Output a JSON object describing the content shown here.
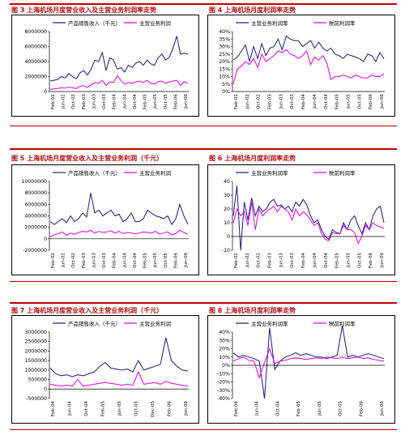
{
  "colors": {
    "primary": "#1a1a6e",
    "secondary": "#e000e0",
    "rule": "#c00000",
    "title": "#b01010"
  },
  "panels": [
    {
      "title": "图 3 上海机场月度营业收入及主营业务利润率走势",
      "legend": [
        "产品销售收入（千元）",
        "主营业务利润"
      ]
    },
    {
      "title": "图 4 上海机场月度利润率走势",
      "legend": [
        "主营业务利润率",
        "税前利润率"
      ]
    },
    {
      "title": "图 5 上海机场月度营业收入及主营业务利润（千元）",
      "legend": [
        "产品销售收入（千元）",
        "主营业务利润"
      ]
    },
    {
      "title": "图 6 上海机场月度利润率走势",
      "legend": [
        "主营业务利润率",
        "税前利润率"
      ]
    },
    {
      "title": "图 7 上海机场月度营业收入及主营业务利润（千元）",
      "legend": [
        "产品销售收入（千元）",
        "主营业务利润"
      ]
    },
    {
      "title": "图 8 上海机场月度利润率走势",
      "legend": [
        "主营业务利润率",
        "税前利润率"
      ]
    }
  ],
  "chart_data": [
    {
      "type": "line",
      "xlabels": [
        "Feb-02",
        "Jun-02",
        "Oct-02",
        "Feb-03",
        "Jun-03",
        "Oct-03",
        "Feb-04",
        "Jun-04",
        "Oct-04",
        "Feb-05",
        "Jun-05",
        "Oct-05",
        "Feb-06",
        "Jun-06"
      ],
      "yticks": [
        "8000000",
        "6000000",
        "4000000",
        "2000000",
        "0"
      ],
      "ylim": [
        0,
        8000000
      ],
      "series": [
        {
          "name": "产品销售收入（千元）",
          "values": [
            1400000,
            1500000,
            1600000,
            2000000,
            1800000,
            2400000,
            2000000,
            1700000,
            2500000,
            2800000,
            2200000,
            3000000,
            4200000,
            4000000,
            5200000,
            2800000,
            4500000,
            4200000,
            3000000,
            3200000,
            2600000,
            3500000,
            3200000,
            3800000,
            4000000,
            3500000,
            4200000,
            3700000,
            3500000,
            4500000,
            5000000,
            4200000,
            4600000,
            5800000,
            7400000,
            5000000,
            5100000,
            5000000
          ]
        },
        {
          "name": "主营业务利润",
          "values": [
            300000,
            350000,
            400000,
            500000,
            450000,
            600000,
            500000,
            400000,
            700000,
            800000,
            550000,
            900000,
            1200000,
            1100000,
            1500000,
            800000,
            1300000,
            1200000,
            2100000,
            1500000,
            1000000,
            1200000,
            1100000,
            1300000,
            1400000,
            1200000,
            1500000,
            1100000,
            1000000,
            1300000,
            1400000,
            1100000,
            1300000,
            1400000,
            1500000,
            800000,
            1300000,
            1100000
          ]
        }
      ]
    },
    {
      "type": "line",
      "xlabels": [
        "Feb-02",
        "Jun-02",
        "Oct-02",
        "Feb-03",
        "Jun-03",
        "Oct-03",
        "Feb-04",
        "Jun-04",
        "Oct-04",
        "Feb-05",
        "Jun-05",
        "Oct-05",
        "Feb-06",
        "Jun-06"
      ],
      "yticks": [
        "40%",
        "35%",
        "30%",
        "25%",
        "20%",
        "15%",
        "10%",
        "5%",
        "0%"
      ],
      "ylim": [
        0,
        40
      ],
      "series": [
        {
          "name": "主营业务利润率",
          "values": [
            21,
            23,
            27,
            31,
            20,
            30,
            22,
            32,
            24,
            29,
            30,
            35,
            28,
            37,
            35,
            34,
            34,
            30,
            32,
            34,
            29,
            33,
            29,
            27,
            29,
            25,
            24,
            22,
            25,
            24,
            23,
            22,
            20,
            25,
            24,
            20,
            26,
            22
          ]
        },
        {
          "name": "税前利润率",
          "values": [
            5,
            15,
            17,
            20,
            18,
            22,
            16,
            25,
            20,
            22,
            24,
            27,
            26,
            28,
            25,
            24,
            22,
            24,
            27,
            18,
            23,
            21,
            24,
            19,
            8,
            10,
            10,
            11,
            10,
            9,
            11,
            10,
            9,
            9,
            11,
            10,
            10,
            12
          ]
        }
      ]
    },
    {
      "type": "line",
      "xlabels": [
        "Feb-02",
        "Jun-02",
        "Oct-02",
        "Feb-03",
        "Jun-03",
        "Oct-03",
        "Feb-04",
        "Jun-04",
        "Oct-04",
        "Feb-05",
        "Jun-05",
        "Oct-05",
        "Feb-06",
        "Jun-06"
      ],
      "yticks": [
        "10000000",
        "8000000",
        "6000000",
        "4000000",
        "2000000",
        "0",
        "-2000000"
      ],
      "ylim": [
        -2000000,
        10000000
      ],
      "series": [
        {
          "name": "产品销售收入（千元）",
          "values": [
            3000000,
            2500000,
            3000000,
            3500000,
            2800000,
            4000000,
            3000000,
            3500000,
            4500000,
            3800000,
            8000000,
            4500000,
            5000000,
            4000000,
            4500000,
            5000000,
            4000000,
            4300000,
            3000000,
            3500000,
            4500000,
            3000000,
            3000000,
            3500000,
            5000000,
            4500000,
            4000000,
            3800000,
            3500000,
            4000000,
            2500000,
            3500000,
            6000000,
            4000000,
            2500000
          ]
        },
        {
          "name": "主营业务利润",
          "values": [
            300000,
            700000,
            900000,
            1200000,
            600000,
            1000000,
            800000,
            1100000,
            1300000,
            1200000,
            1500000,
            1000000,
            1300000,
            1100000,
            1200000,
            1400000,
            1000000,
            1300000,
            900000,
            1100000,
            1000000,
            900000,
            1000000,
            1200000,
            1100000,
            1000000,
            1300000,
            800000,
            1000000,
            1200000,
            700000,
            900000,
            1500000,
            1100000,
            800000
          ]
        }
      ]
    },
    {
      "type": "line",
      "xlabels": [
        "Feb-02",
        "Jun-02",
        "Oct-02",
        "Feb-03",
        "Jun-03",
        "Oct-03",
        "Feb-04",
        "Jun-04",
        "Oct-04",
        "Feb-05",
        "Jun-05",
        "Oct-05",
        "Feb-06",
        "Jun-06"
      ],
      "yticks": [
        "40",
        "30",
        "20",
        "10",
        "0",
        "-10"
      ],
      "ylim": [
        -10,
        40
      ],
      "series": [
        {
          "name": "主营业务利润率",
          "values": [
            15,
            37,
            -10,
            25,
            12,
            28,
            15,
            22,
            18,
            20,
            25,
            27,
            22,
            23,
            20,
            22,
            18,
            25,
            22,
            27,
            23,
            15,
            10,
            12,
            5,
            0,
            -2,
            5,
            3,
            2,
            10,
            5,
            12,
            15,
            8,
            2,
            10,
            5,
            15,
            20,
            22,
            10
          ]
        },
        {
          "name": "税前利润率",
          "values": [
            10,
            20,
            15,
            18,
            8,
            25,
            5,
            20,
            15,
            18,
            20,
            22,
            18,
            22,
            20,
            18,
            12,
            20,
            15,
            18,
            16,
            12,
            8,
            10,
            2,
            -2,
            -3,
            3,
            2,
            2,
            8,
            5,
            5,
            3,
            -5,
            0,
            8,
            5,
            10,
            8,
            7,
            6
          ]
        }
      ]
    },
    {
      "type": "line",
      "xlabels": [
        "Feb-04",
        "Jun-04",
        "Oct-04",
        "Feb-05",
        "Jun-05",
        "Oct-05",
        "Dec-05",
        "Feb-06",
        "Jun-06"
      ],
      "yticks": [
        "3000000",
        "2500000",
        "2000000",
        "1500000",
        "1000000",
        "500000",
        "0",
        "-500000"
      ],
      "ylim": [
        -500000,
        3000000
      ],
      "series": [
        {
          "name": "产品销售收入（千元）",
          "values": [
            1100000,
            800000,
            700000,
            750000,
            650000,
            750000,
            700000,
            800000,
            900000,
            1200000,
            1400000,
            1100000,
            1050000,
            1000000,
            1050000,
            900000,
            1500000,
            1000000,
            1100000,
            1200000,
            1300000,
            2700000,
            1500000,
            1200000,
            1000000,
            950000
          ]
        },
        {
          "name": "主营业务利润",
          "values": [
            250000,
            200000,
            150000,
            200000,
            150000,
            500000,
            150000,
            200000,
            250000,
            300000,
            350000,
            300000,
            250000,
            200000,
            250000,
            200000,
            900000,
            250000,
            300000,
            350000,
            250000,
            400000,
            300000,
            250000,
            200000,
            150000
          ]
        }
      ]
    },
    {
      "type": "line",
      "xlabels": [
        "Feb-04",
        "Jun-04",
        "Oct-04",
        "Feb-05",
        "Jun-05",
        "Oct-05",
        "Feb-06",
        "Jun-06"
      ],
      "yticks": [
        "40%",
        "30%",
        "20%",
        "10%",
        "0%",
        "-10%",
        "-20%",
        "-30%",
        "-40%"
      ],
      "ylim": [
        -40,
        40
      ],
      "series": [
        {
          "name": "主营业务利润率",
          "values": [
            15,
            10,
            12,
            10,
            8,
            5,
            -40,
            45,
            -5,
            5,
            10,
            12,
            15,
            12,
            14,
            12,
            10,
            10,
            8,
            10,
            12,
            48,
            10,
            12,
            10,
            12,
            14,
            12,
            10,
            8
          ]
        },
        {
          "name": "税前利润率",
          "values": [
            5,
            8,
            10,
            6,
            5,
            -15,
            3,
            20,
            2,
            5,
            6,
            8,
            9,
            8,
            7,
            8,
            9,
            8,
            10,
            9,
            8,
            10,
            8,
            9,
            10,
            8,
            9,
            7,
            6,
            5
          ]
        }
      ]
    }
  ]
}
